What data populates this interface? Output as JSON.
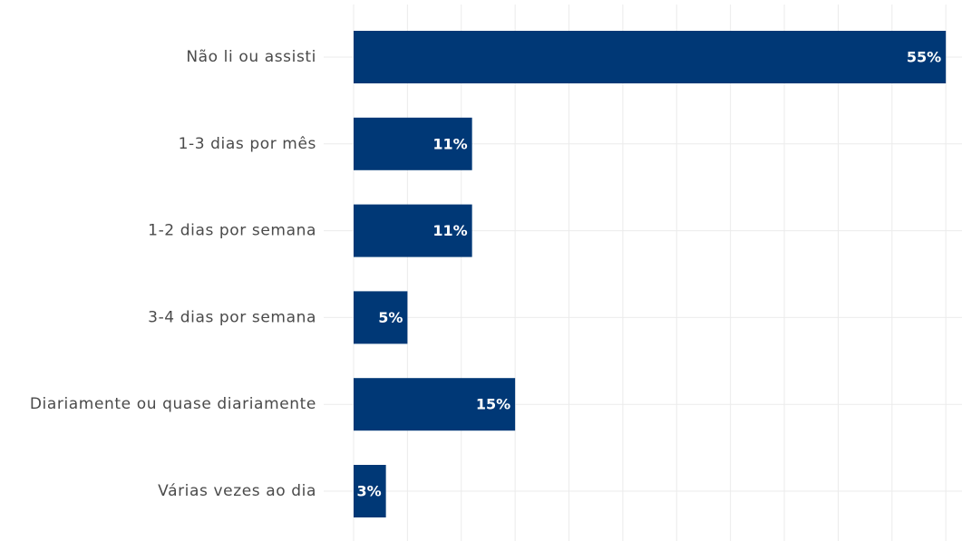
{
  "chart_data": {
    "type": "bar",
    "orientation": "horizontal",
    "categories": [
      "Não li ou assisti",
      "1-3 dias por mês",
      "1-2 dias por semana",
      "3-4 dias por semana",
      "Diariamente ou quase diariamente",
      "Várias vezes ao dia"
    ],
    "values": [
      55,
      11,
      11,
      5,
      15,
      3
    ],
    "data_labels": [
      "55%",
      "11%",
      "11%",
      "5%",
      "15%",
      "3%"
    ],
    "title": "",
    "xlabel": "",
    "ylabel": "",
    "xlim": [
      0,
      56.5
    ],
    "grid": true,
    "bar_color": "#003876"
  }
}
